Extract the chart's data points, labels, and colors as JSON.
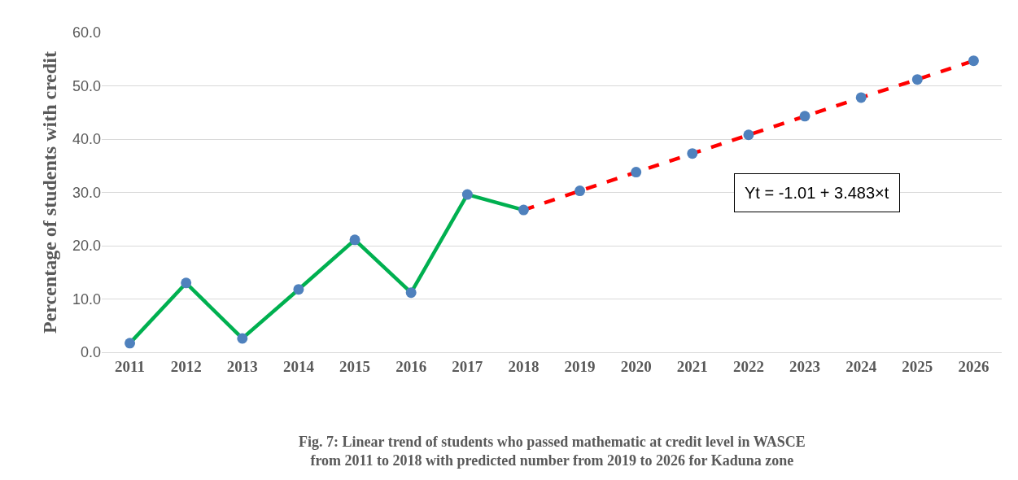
{
  "chart_data": {
    "type": "line",
    "categories": [
      "2011",
      "2012",
      "2013",
      "2014",
      "2015",
      "2016",
      "2017",
      "2018",
      "2019",
      "2020",
      "2021",
      "2022",
      "2023",
      "2024",
      "2025",
      "2026"
    ],
    "ylabel": "Percentage of students with credit",
    "series": [
      {
        "color": "#00b050",
        "line_style": "solid",
        "values": [
          1.7,
          13.0,
          2.6,
          11.8,
          21.1,
          11.2,
          29.6,
          26.7,
          null,
          null,
          null,
          null,
          null,
          null,
          null,
          null
        ]
      },
      {
        "color": "#ff0000",
        "line_style": "dashed",
        "values": [
          null,
          null,
          null,
          null,
          null,
          null,
          null,
          26.7,
          30.3,
          33.8,
          37.3,
          40.8,
          44.3,
          47.8,
          51.2,
          54.7
        ]
      },
      {
        "type": "scatter",
        "color": "#4f81bd",
        "marker": "circle",
        "values": [
          1.7,
          13.0,
          2.6,
          11.8,
          21.1,
          11.2,
          29.6,
          26.7,
          30.3,
          33.8,
          37.3,
          40.8,
          44.3,
          47.8,
          51.2,
          54.7
        ]
      }
    ],
    "ylim": [
      0,
      60
    ],
    "yticks": [
      {
        "value": 0,
        "label": "0.0"
      },
      {
        "value": 10,
        "label": "10.0"
      },
      {
        "value": 20,
        "label": "20.0"
      },
      {
        "value": 30,
        "label": "30.0"
      },
      {
        "value": 40,
        "label": "40.0"
      },
      {
        "value": 50,
        "label": "50.0"
      },
      {
        "value": 60,
        "label": "60.0"
      }
    ],
    "grid": "y",
    "legend": false,
    "annotations": [
      "Yt = -1.01 + 3.483×t",
      "Fig. 7: Linear trend of students who passed mathematic at credit level in WASCE\nfrom 2011 to 2018 with predicted number from 2019 to 2026 for Kaduna zone"
    ]
  }
}
